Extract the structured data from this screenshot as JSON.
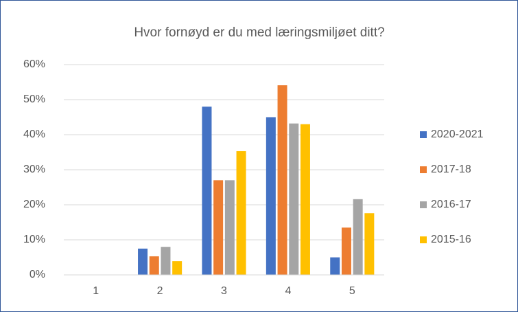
{
  "chart_data": {
    "type": "bar",
    "title": "Hvor fornøyd er du med læringsmiljøet ditt?",
    "categories": [
      "1",
      "2",
      "3",
      "4",
      "5"
    ],
    "series": [
      {
        "name": "2020-2021",
        "color": "#4472c4",
        "values": [
          0,
          7.5,
          48,
          45,
          5
        ]
      },
      {
        "name": "2017-18",
        "color": "#ed7d31",
        "values": [
          0,
          5.3,
          27,
          54.1,
          13.5
        ]
      },
      {
        "name": "2016-17",
        "color": "#a5a5a5",
        "values": [
          0,
          8,
          27,
          43.2,
          21.6
        ]
      },
      {
        "name": "2015-16",
        "color": "#ffc000",
        "values": [
          0,
          3.9,
          35.3,
          43,
          17.6
        ]
      }
    ],
    "ylim": [
      0,
      60
    ],
    "yticks": [
      {
        "value": 0,
        "label": "0%"
      },
      {
        "value": 10,
        "label": "10%"
      },
      {
        "value": 20,
        "label": "20%"
      },
      {
        "value": 30,
        "label": "30%"
      },
      {
        "value": 40,
        "label": "40%"
      },
      {
        "value": 50,
        "label": "50%"
      },
      {
        "value": 60,
        "label": "60%"
      }
    ],
    "grid": true,
    "legend": "right"
  }
}
